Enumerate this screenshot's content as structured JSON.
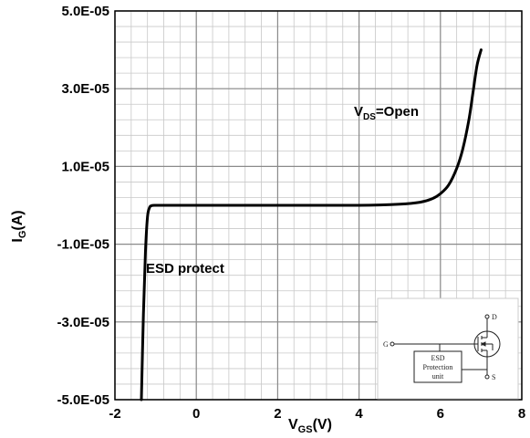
{
  "chart_data": {
    "type": "line",
    "title": "",
    "xlabel": "V_GS(V)",
    "xlabel_parts": {
      "main": "V",
      "sub": "GS",
      "tail": "(V)"
    },
    "ylabel": "I_G(A)",
    "ylabel_parts": {
      "main": "I",
      "sub": "G",
      "tail": "(A)"
    },
    "xlim": [
      -2,
      8
    ],
    "ylim": [
      -5e-05,
      5e-05
    ],
    "x_ticks": [
      -2,
      0,
      2,
      4,
      6,
      8
    ],
    "x_tick_labels": [
      "-2",
      "0",
      "2",
      "4",
      "6",
      "8"
    ],
    "y_ticks": [
      -5e-05,
      -3e-05,
      -1e-05,
      1e-05,
      3e-05,
      5e-05
    ],
    "y_tick_labels": [
      "-5.0E-05",
      "-3.0E-05",
      "-1.0E-05",
      "1.0E-05",
      "3.0E-05",
      "5.0E-05"
    ],
    "grid": true,
    "minor_grid": true,
    "legend": false,
    "series": [
      {
        "color": "#000000",
        "x": [
          -1.35,
          -1.3,
          -1.25,
          -1.2,
          -1.15,
          -1.1,
          -1.0,
          -0.5,
          0,
          2,
          4,
          5,
          5.5,
          5.8,
          6.0,
          6.2,
          6.4,
          6.55,
          6.7,
          6.8,
          6.9,
          7.0
        ],
        "y": [
          -5e-05,
          -2.8e-05,
          -1.2e-05,
          -3e-06,
          -6e-07,
          -1e-07,
          0,
          0,
          0,
          0,
          0,
          3e-07,
          8e-07,
          1.7e-06,
          3e-06,
          5.2e-06,
          9.5e-06,
          1.45e-05,
          2.2e-05,
          2.9e-05,
          3.6e-05,
          4e-05
        ]
      }
    ],
    "annotations": {
      "esd_label": "ESD protect",
      "vds_main": "V",
      "vds_sub": "DS",
      "vds_tail": "=Open"
    },
    "inset": {
      "description_labels": {
        "d": "D",
        "g": "G",
        "s": "S",
        "box_line1": "ESD",
        "box_line2": "Protection",
        "box_line3": "unit"
      }
    }
  }
}
